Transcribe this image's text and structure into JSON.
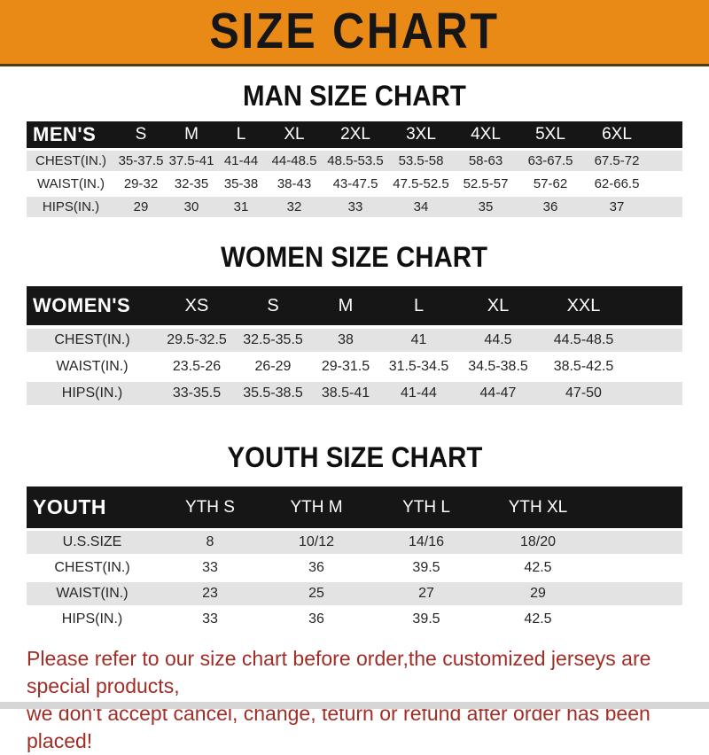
{
  "banner": {
    "title": "SIZE CHART"
  },
  "sections": [
    {
      "heading": "MAN SIZE CHART",
      "label": "MEN'S",
      "columns": [
        "S",
        "M",
        "L",
        "XL",
        "2XL",
        "3XL",
        "4XL",
        "5XL",
        "6XL"
      ],
      "rows": [
        {
          "label": "CHEST(IN.)",
          "values": [
            "35-37.5",
            "37.5-41",
            "41-44",
            "44-48.5",
            "48.5-53.5",
            "53.5-58",
            "58-63",
            "63-67.5",
            "67.5-72"
          ]
        },
        {
          "label": "WAIST(IN.)",
          "values": [
            "29-32",
            "32-35",
            "35-38",
            "38-43",
            "43-47.5",
            "47.5-52.5",
            "52.5-57",
            "57-62",
            "62-66.5"
          ]
        },
        {
          "label": "HIPS(IN.)",
          "values": [
            "29",
            "30",
            "31",
            "32",
            "33",
            "34",
            "35",
            "36",
            "37"
          ]
        }
      ]
    },
    {
      "heading": "WOMEN SIZE CHART",
      "label": "WOMEN'S",
      "columns": [
        "XS",
        "S",
        "M",
        "L",
        "XL",
        "XXL"
      ],
      "rows": [
        {
          "label": "CHEST(IN.)",
          "values": [
            "29.5-32.5",
            "32.5-35.5",
            "38",
            "41",
            "44.5",
            "44.5-48.5"
          ]
        },
        {
          "label": "WAIST(IN.)",
          "values": [
            "23.5-26",
            "26-29",
            "29-31.5",
            "31.5-34.5",
            "34.5-38.5",
            "38.5-42.5"
          ]
        },
        {
          "label": "HIPS(IN.)",
          "values": [
            "33-35.5",
            "35.5-38.5",
            "38.5-41",
            "41-44",
            "44-47",
            "47-50"
          ]
        }
      ]
    },
    {
      "heading": "YOUTH SIZE CHART",
      "label": "YOUTH",
      "columns": [
        "YTH S",
        "YTH M",
        "YTH L",
        "YTH XL"
      ],
      "rows": [
        {
          "label": "U.S.SIZE",
          "values": [
            "8",
            "10/12",
            "14/16",
            "18/20"
          ]
        },
        {
          "label": "CHEST(IN.)",
          "values": [
            "33",
            "36",
            "39.5",
            "42.5"
          ]
        },
        {
          "label": "WAIST(IN.)",
          "values": [
            "23",
            "25",
            "27",
            "29"
          ]
        },
        {
          "label": "HIPS(IN.)",
          "values": [
            "33",
            "36",
            "39.5",
            "42.5"
          ]
        }
      ]
    }
  ],
  "footer": {
    "line1": "Please refer to our size chart before order,the customized jerseys are special products,",
    "line2": "we don't accept cancel, change, teturn or refund after order has been placed!"
  },
  "colors": {
    "banner_bg": "#E98A16",
    "bar_bg": "#161616",
    "row_gray": "#E3E3E3",
    "note_red": "#A02D26"
  }
}
